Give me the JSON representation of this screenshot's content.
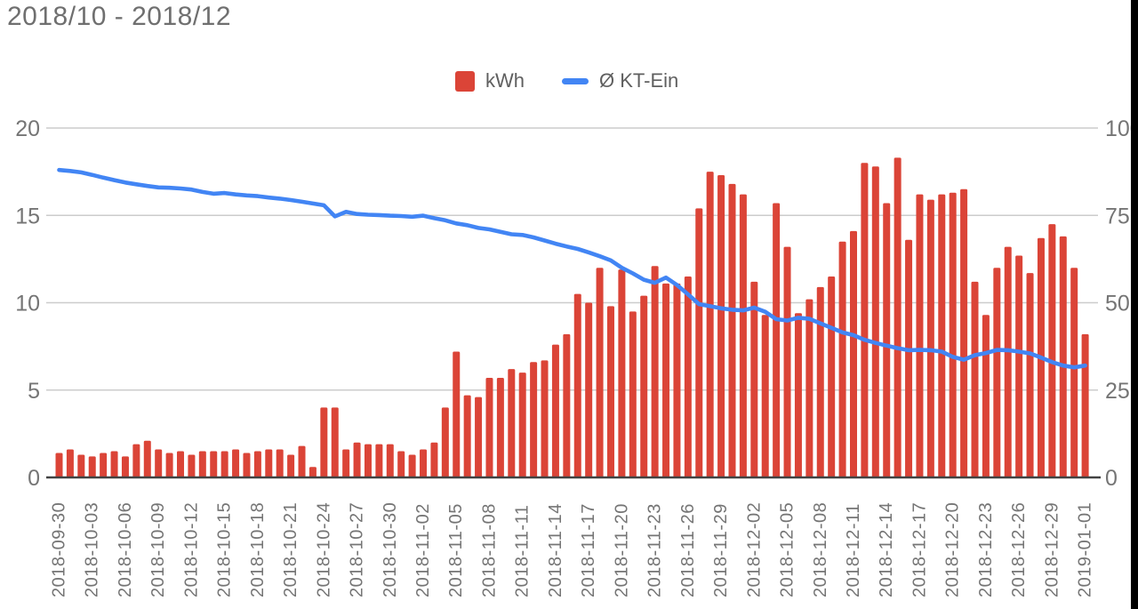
{
  "title": "2018/10 - 2018/12",
  "legend": [
    {
      "label": "kWh",
      "color": "#db4437",
      "swatch": "square"
    },
    {
      "label": "Ø KT-Ein",
      "color": "#4285f4",
      "swatch": "line"
    }
  ],
  "colors": {
    "bar": "#db4437",
    "line": "#4285f4",
    "gridline": "#cccccc",
    "baseline": "#424242",
    "axis_text": "#757575",
    "title_text": "#6f6f6f",
    "background": "#ffffff",
    "edge_strip": "#000000"
  },
  "chart_data": {
    "type": "bar",
    "subtype": "combo-bar-line",
    "title": "2018/10 - 2018/12",
    "grid": true,
    "legend_position": "top",
    "x_tick_every": 3,
    "left_axis": {
      "ticks": [
        0,
        5,
        10,
        15,
        20
      ],
      "range": [
        0,
        20
      ]
    },
    "right_axis": {
      "ticks": [
        0,
        25,
        50,
        75,
        100
      ],
      "range": [
        0,
        100
      ]
    },
    "x": [
      "2018-09-30",
      "2018-10-01",
      "2018-10-02",
      "2018-10-03",
      "2018-10-04",
      "2018-10-05",
      "2018-10-06",
      "2018-10-07",
      "2018-10-08",
      "2018-10-09",
      "2018-10-10",
      "2018-10-11",
      "2018-10-12",
      "2018-10-13",
      "2018-10-14",
      "2018-10-15",
      "2018-10-16",
      "2018-10-17",
      "2018-10-18",
      "2018-10-19",
      "2018-10-20",
      "2018-10-21",
      "2018-10-22",
      "2018-10-23",
      "2018-10-24",
      "2018-10-25",
      "2018-10-26",
      "2018-10-27",
      "2018-10-28",
      "2018-10-29",
      "2018-10-30",
      "2018-10-31",
      "2018-11-01",
      "2018-11-02",
      "2018-11-03",
      "2018-11-04",
      "2018-11-05",
      "2018-11-06",
      "2018-11-07",
      "2018-11-08",
      "2018-11-09",
      "2018-11-10",
      "2018-11-11",
      "2018-11-12",
      "2018-11-13",
      "2018-11-14",
      "2018-11-15",
      "2018-11-16",
      "2018-11-17",
      "2018-11-18",
      "2018-11-19",
      "2018-11-20",
      "2018-11-21",
      "2018-11-22",
      "2018-11-23",
      "2018-11-24",
      "2018-11-25",
      "2018-11-26",
      "2018-11-27",
      "2018-11-28",
      "2018-11-29",
      "2018-11-30",
      "2018-12-01",
      "2018-12-02",
      "2018-12-03",
      "2018-12-04",
      "2018-12-05",
      "2018-12-06",
      "2018-12-07",
      "2018-12-08",
      "2018-12-09",
      "2018-12-10",
      "2018-12-11",
      "2018-12-12",
      "2018-12-13",
      "2018-12-14",
      "2018-12-15",
      "2018-12-16",
      "2018-12-17",
      "2018-12-18",
      "2018-12-19",
      "2018-12-20",
      "2018-12-21",
      "2018-12-22",
      "2018-12-23",
      "2018-12-24",
      "2018-12-25",
      "2018-12-26",
      "2018-12-27",
      "2018-12-28",
      "2018-12-29",
      "2018-12-30",
      "2018-12-31",
      "2019-01-01"
    ],
    "series": [
      {
        "name": "kWh",
        "type": "bar",
        "axis": "left",
        "color": "#db4437",
        "values": [
          1.4,
          1.6,
          1.3,
          1.2,
          1.4,
          1.5,
          1.2,
          1.9,
          2.1,
          1.6,
          1.4,
          1.5,
          1.3,
          1.5,
          1.5,
          1.5,
          1.6,
          1.4,
          1.5,
          1.6,
          1.6,
          1.3,
          1.8,
          0.6,
          4.0,
          4.0,
          1.6,
          2.0,
          1.9,
          1.9,
          1.9,
          1.5,
          1.3,
          1.6,
          2.0,
          4.0,
          7.2,
          4.7,
          4.6,
          5.7,
          5.7,
          6.2,
          6.0,
          6.6,
          6.7,
          7.6,
          8.2,
          10.5,
          10.0,
          12.0,
          9.8,
          11.9,
          9.5,
          10.4,
          12.1,
          11.1,
          11.1,
          11.5,
          15.4,
          17.5,
          17.3,
          16.8,
          16.2,
          11.2,
          9.3,
          15.7,
          13.2,
          9.4,
          10.2,
          10.9,
          11.5,
          13.5,
          14.1,
          18.0,
          17.8,
          15.7,
          18.3,
          13.6,
          16.2,
          15.9,
          16.2,
          16.3,
          16.5,
          11.2,
          9.3,
          12.0,
          13.2,
          12.7,
          11.7,
          13.7,
          14.5,
          13.8,
          12.0,
          8.2
        ]
      },
      {
        "name": "Ø KT-Ein",
        "type": "line",
        "axis": "right",
        "color": "#4285f4",
        "values": [
          88.0,
          87.7,
          87.3,
          86.6,
          85.8,
          85.1,
          84.4,
          83.9,
          83.4,
          83.0,
          82.9,
          82.7,
          82.4,
          81.7,
          81.2,
          81.4,
          81.0,
          80.7,
          80.5,
          80.1,
          79.8,
          79.4,
          78.9,
          78.4,
          77.9,
          74.7,
          76.0,
          75.4,
          75.2,
          75.1,
          74.9,
          74.8,
          74.6,
          74.9,
          74.2,
          73.6,
          72.7,
          72.2,
          71.4,
          71.0,
          70.3,
          69.6,
          69.4,
          68.7,
          67.8,
          66.9,
          66.1,
          65.4,
          64.4,
          63.3,
          62.1,
          60.0,
          58.4,
          56.6,
          55.7,
          57.2,
          55.1,
          52.4,
          49.6,
          49.0,
          48.4,
          48.0,
          47.8,
          48.6,
          47.4,
          45.3,
          44.9,
          45.7,
          45.4,
          44.1,
          42.8,
          41.5,
          40.7,
          39.4,
          38.5,
          37.7,
          37.0,
          36.4,
          36.5,
          36.4,
          36.0,
          34.5,
          33.7,
          35.0,
          35.6,
          36.5,
          36.4,
          36.0,
          35.5,
          34.3,
          33.0,
          32.0,
          31.5,
          32.0
        ]
      }
    ]
  }
}
